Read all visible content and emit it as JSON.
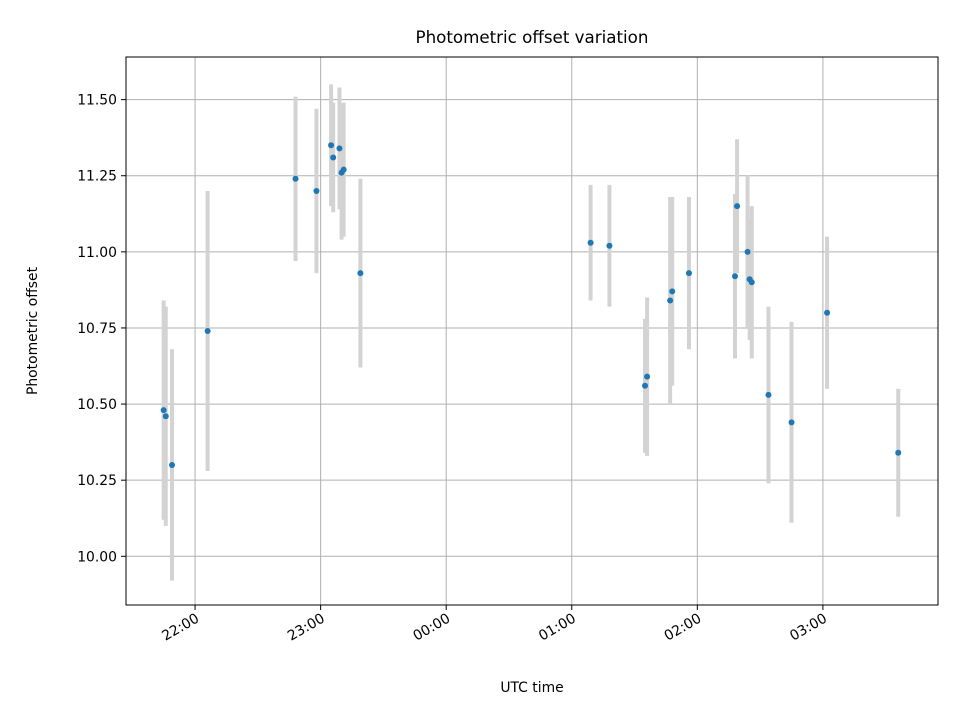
{
  "chart_data": {
    "type": "scatter",
    "title": "Photometric offset variation",
    "xlabel": "UTC time",
    "ylabel": "Photometric offset",
    "grid": true,
    "x_ticks": [
      "22:00",
      "23:00",
      "00:00",
      "01:00",
      "02:00",
      "03:00"
    ],
    "y_ticks": [
      "10.00",
      "10.25",
      "10.50",
      "10.75",
      "11.00",
      "11.25",
      "11.50"
    ],
    "xlim": [
      "21:27",
      "03:55"
    ],
    "ylim": [
      9.84,
      11.64
    ],
    "colors": {
      "point": "#1f77b4",
      "errorbar": "#d3d3d3",
      "grid": "#b0b0b0"
    },
    "points": [
      {
        "x": "21:45",
        "y": 10.48,
        "yerr": 0.36
      },
      {
        "x": "21:46",
        "y": 10.46,
        "yerr": 0.36
      },
      {
        "x": "21:49",
        "y": 10.3,
        "yerr": 0.38
      },
      {
        "x": "22:06",
        "y": 10.74,
        "yerr": 0.46
      },
      {
        "x": "22:48",
        "y": 11.24,
        "yerr": 0.27
      },
      {
        "x": "22:58",
        "y": 11.2,
        "yerr": 0.27
      },
      {
        "x": "23:05",
        "y": 11.35,
        "yerr": 0.2
      },
      {
        "x": "23:06",
        "y": 11.31,
        "yerr": 0.18
      },
      {
        "x": "23:09",
        "y": 11.34,
        "yerr": 0.2
      },
      {
        "x": "23:10",
        "y": 11.26,
        "yerr": 0.22
      },
      {
        "x": "23:11",
        "y": 11.27,
        "yerr": 0.22
      },
      {
        "x": "23:19",
        "y": 10.93,
        "yerr": 0.31
      },
      {
        "x": "01:09",
        "y": 11.03,
        "yerr": 0.19
      },
      {
        "x": "01:18",
        "y": 11.02,
        "yerr": 0.2
      },
      {
        "x": "01:35",
        "y": 10.56,
        "yerr": 0.22
      },
      {
        "x": "01:36",
        "y": 10.59,
        "yerr": 0.26
      },
      {
        "x": "01:47",
        "y": 10.84,
        "yerr": 0.34
      },
      {
        "x": "01:48",
        "y": 10.87,
        "yerr": 0.31
      },
      {
        "x": "01:56",
        "y": 10.93,
        "yerr": 0.25
      },
      {
        "x": "02:18",
        "y": 10.92,
        "yerr": 0.27
      },
      {
        "x": "02:19",
        "y": 11.15,
        "yerr": 0.22
      },
      {
        "x": "02:24",
        "y": 11.0,
        "yerr": 0.25
      },
      {
        "x": "02:25",
        "y": 10.91,
        "yerr": 0.2
      },
      {
        "x": "02:26",
        "y": 10.9,
        "yerr": 0.25
      },
      {
        "x": "02:34",
        "y": 10.53,
        "yerr": 0.29
      },
      {
        "x": "02:45",
        "y": 10.44,
        "yerr": 0.33
      },
      {
        "x": "03:02",
        "y": 10.8,
        "yerr": 0.25
      },
      {
        "x": "03:36",
        "y": 10.34,
        "yerr": 0.21
      }
    ]
  }
}
